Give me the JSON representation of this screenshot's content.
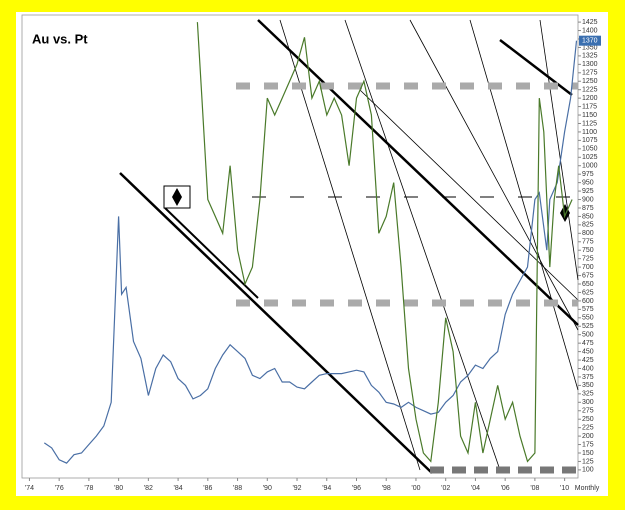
{
  "chart_data": {
    "type": "line",
    "title": "Au  vs.  Pt",
    "x_unit_label": "Monthly",
    "last_value_label": 1370,
    "xlim": [
      1973.5,
      2010.9
    ],
    "ylim": [
      76,
      1446
    ],
    "xticks": [
      {
        "value": 1974,
        "label": "'74"
      },
      {
        "value": 1976,
        "label": "'76"
      },
      {
        "value": 1978,
        "label": "'78"
      },
      {
        "value": 1980,
        "label": "'80"
      },
      {
        "value": 1982,
        "label": "'82"
      },
      {
        "value": 1984,
        "label": "'84"
      },
      {
        "value": 1986,
        "label": "'86"
      },
      {
        "value": 1988,
        "label": "'88"
      },
      {
        "value": 1990,
        "label": "'90"
      },
      {
        "value": 1992,
        "label": "'92"
      },
      {
        "value": 1994,
        "label": "'94"
      },
      {
        "value": 1996,
        "label": "'96"
      },
      {
        "value": 1998,
        "label": "'98"
      },
      {
        "value": 2000,
        "label": "'00"
      },
      {
        "value": 2002,
        "label": "'02"
      },
      {
        "value": 2004,
        "label": "'04"
      },
      {
        "value": 2006,
        "label": "'06"
      },
      {
        "value": 2008,
        "label": "'08"
      },
      {
        "value": 2010,
        "label": "'10"
      }
    ],
    "yticks": [
      100,
      125,
      150,
      175,
      200,
      225,
      250,
      275,
      300,
      325,
      350,
      375,
      400,
      425,
      450,
      475,
      500,
      525,
      550,
      575,
      600,
      625,
      650,
      675,
      700,
      725,
      750,
      775,
      800,
      825,
      850,
      875,
      900,
      925,
      950,
      975,
      1000,
      1025,
      1050,
      1075,
      1100,
      1125,
      1150,
      1175,
      1200,
      1225,
      1250,
      1275,
      1300,
      1325,
      1350,
      1375,
      1400,
      1425
    ],
    "grid": false,
    "series": [
      {
        "color": "#4a6fa5",
        "x": [
          1975,
          1975.5,
          1976,
          1976.5,
          1977,
          1977.5,
          1978,
          1978.5,
          1979,
          1979.5,
          1980,
          1980.2,
          1980.5,
          1981,
          1981.5,
          1982,
          1982.5,
          1983,
          1983.5,
          1984,
          1984.5,
          1985,
          1985.5,
          1986,
          1986.5,
          1987,
          1987.5,
          1988,
          1988.5,
          1989,
          1989.5,
          1990,
          1990.5,
          1991,
          1991.5,
          1992,
          1992.5,
          1993,
          1993.5,
          1994,
          1994.5,
          1995,
          1995.5,
          1996,
          1996.5,
          1997,
          1997.5,
          1998,
          1998.5,
          1999,
          1999.5,
          2000,
          2000.5,
          2001,
          2001.5,
          2002,
          2002.5,
          2003,
          2003.5,
          2004,
          2004.5,
          2005,
          2005.5,
          2006,
          2006.5,
          2007,
          2007.5,
          2008,
          2008.3,
          2008.8,
          2009,
          2009.5,
          2010,
          2010.4,
          2010.8
        ],
        "values": [
          180,
          165,
          130,
          120,
          145,
          150,
          175,
          200,
          230,
          300,
          850,
          620,
          640,
          480,
          430,
          320,
          400,
          440,
          420,
          370,
          350,
          310,
          320,
          340,
          400,
          440,
          470,
          450,
          430,
          380,
          370,
          390,
          400,
          360,
          360,
          345,
          340,
          360,
          380,
          385,
          385,
          385,
          390,
          395,
          390,
          350,
          330,
          300,
          295,
          285,
          300,
          285,
          275,
          265,
          270,
          300,
          320,
          360,
          380,
          410,
          400,
          430,
          450,
          560,
          620,
          660,
          700,
          900,
          920,
          750,
          900,
          950,
          1100,
          1200,
          1370
        ]
      },
      {
        "color": "#4a7a2a",
        "x": [
          1985.3,
          1985.6,
          1986,
          1986.5,
          1987,
          1987.5,
          1988,
          1988.5,
          1989,
          1989.5,
          1990,
          1990.5,
          1991,
          1991.5,
          1992,
          1992.5,
          1993,
          1993.5,
          1994,
          1994.5,
          1995,
          1995.5,
          1996,
          1996.5,
          1997,
          1997.5,
          1998,
          1998.5,
          1999,
          1999.5,
          2000,
          2000.5,
          2001,
          2001.5,
          2002,
          2002.5,
          2003,
          2003.5,
          2004,
          2004.5,
          2005,
          2005.5,
          2006,
          2006.5,
          2007,
          2007.5,
          2008,
          2008.3,
          2008.6,
          2009,
          2009.3,
          2009.6,
          2010,
          2010.5
        ],
        "values": [
          1425,
          1200,
          900,
          850,
          800,
          1000,
          750,
          650,
          700,
          900,
          1200,
          1150,
          1200,
          1250,
          1300,
          1380,
          1200,
          1250,
          1150,
          1200,
          1150,
          1000,
          1200,
          1250,
          1150,
          800,
          850,
          950,
          700,
          400,
          250,
          150,
          125,
          300,
          550,
          450,
          200,
          150,
          300,
          150,
          250,
          350,
          250,
          300,
          200,
          125,
          150,
          1200,
          1100,
          700,
          900,
          1000,
          850,
          900
        ]
      }
    ]
  }
}
